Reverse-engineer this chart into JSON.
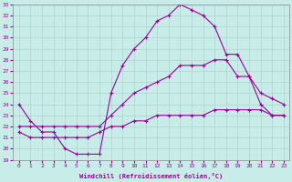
{
  "xlabel": "Windchill (Refroidissement éolien,°C)",
  "xlim": [
    -0.5,
    23.5
  ],
  "ylim": [
    19,
    33
  ],
  "xticks": [
    0,
    1,
    2,
    3,
    4,
    5,
    6,
    7,
    8,
    9,
    10,
    11,
    12,
    13,
    14,
    15,
    16,
    17,
    18,
    19,
    20,
    21,
    22,
    23
  ],
  "yticks": [
    19,
    20,
    21,
    22,
    23,
    24,
    25,
    26,
    27,
    28,
    29,
    30,
    31,
    32,
    33
  ],
  "bg_color": "#c8ece8",
  "line_color": "#990099",
  "grid_color": "#aacccc",
  "lines": [
    {
      "x": [
        0,
        1,
        2,
        3,
        4,
        5,
        6,
        7,
        8,
        9,
        10,
        11,
        12,
        13,
        14,
        15,
        16,
        17,
        18,
        19,
        20,
        21,
        22,
        23
      ],
      "y": [
        24.0,
        22.5,
        21.5,
        21.5,
        20.0,
        19.5,
        19.5,
        19.5,
        25.0,
        27.5,
        29.0,
        30.0,
        31.5,
        32.0,
        33.0,
        32.5,
        32.0,
        31.0,
        28.5,
        28.5,
        26.5,
        24.0,
        23.0,
        23.0
      ]
    },
    {
      "x": [
        0,
        1,
        2,
        3,
        4,
        5,
        6,
        7,
        8,
        9,
        10,
        11,
        12,
        13,
        14,
        15,
        16,
        17,
        18,
        19,
        20,
        21,
        22,
        23
      ],
      "y": [
        22.0,
        22.0,
        22.0,
        22.0,
        22.0,
        22.0,
        22.0,
        22.0,
        23.0,
        24.0,
        25.0,
        25.5,
        26.0,
        26.5,
        27.5,
        27.5,
        27.5,
        28.0,
        28.0,
        26.5,
        26.5,
        25.0,
        24.5,
        24.0
      ]
    },
    {
      "x": [
        0,
        1,
        2,
        3,
        4,
        5,
        6,
        7,
        8,
        9,
        10,
        11,
        12,
        13,
        14,
        15,
        16,
        17,
        18,
        19,
        20,
        21,
        22,
        23
      ],
      "y": [
        21.5,
        21.0,
        21.0,
        21.0,
        21.0,
        21.0,
        21.0,
        21.5,
        22.0,
        22.0,
        22.5,
        22.5,
        23.0,
        23.0,
        23.0,
        23.0,
        23.0,
        23.5,
        23.5,
        23.5,
        23.5,
        23.5,
        23.0,
        23.0
      ]
    }
  ]
}
